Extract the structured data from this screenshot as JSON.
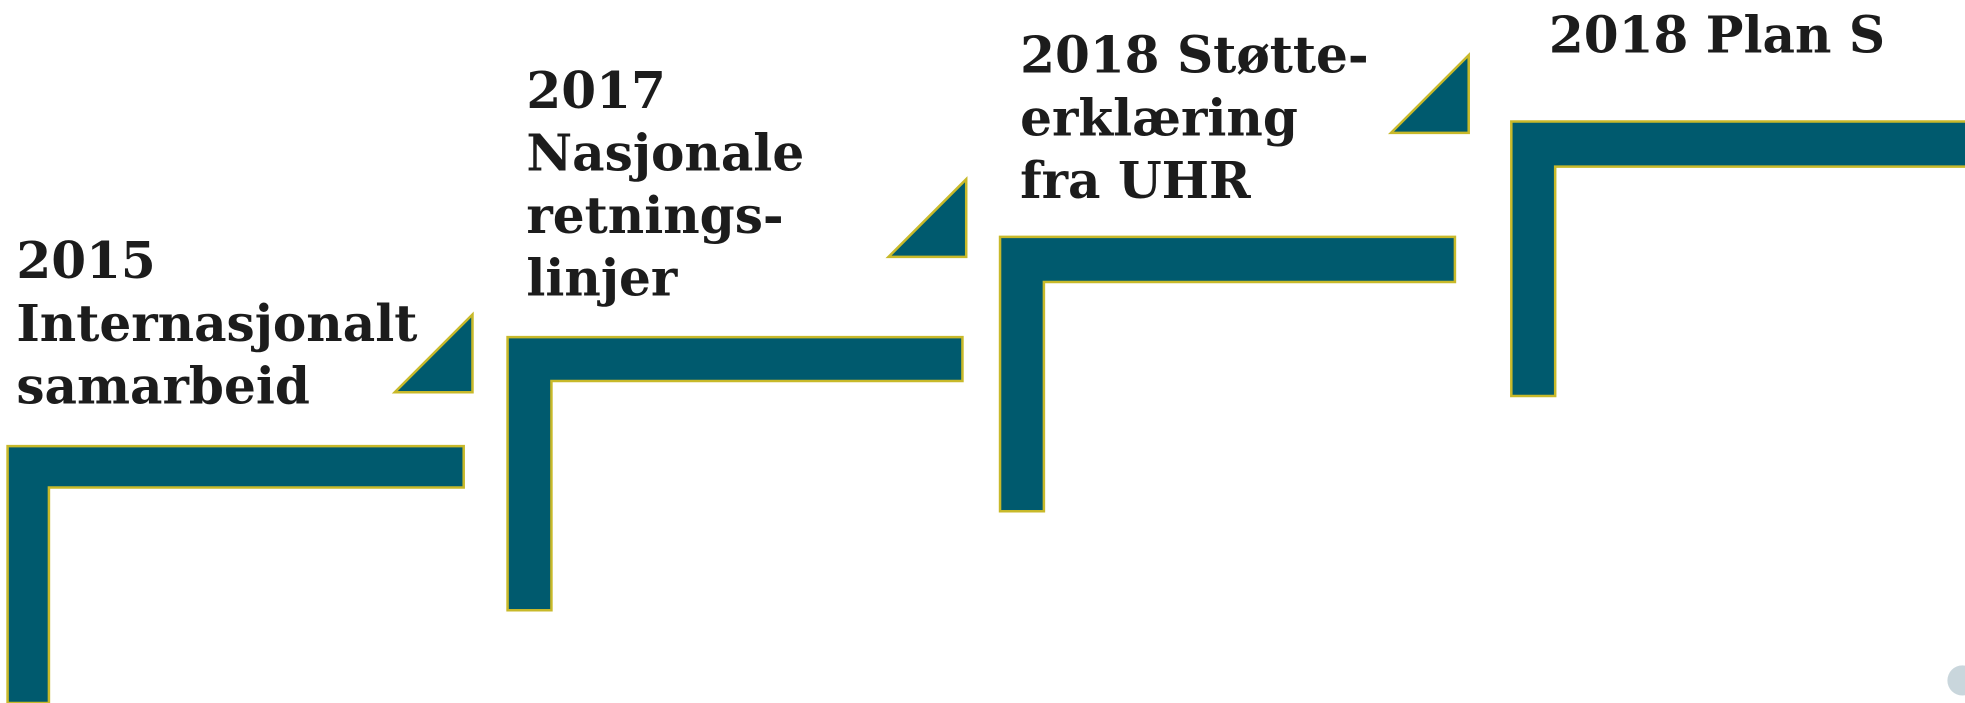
{
  "steps": [
    {
      "lines": [
        "2015",
        "Internasjonalt",
        "samarbeid"
      ]
    },
    {
      "lines": [
        "2017",
        "Nasjonale",
        "retnings-",
        "linjer"
      ]
    },
    {
      "lines": [
        "2018 Støtte-",
        "erklæring",
        "fra UHR"
      ]
    },
    {
      "lines": [
        "2018 Plan S"
      ]
    }
  ]
}
